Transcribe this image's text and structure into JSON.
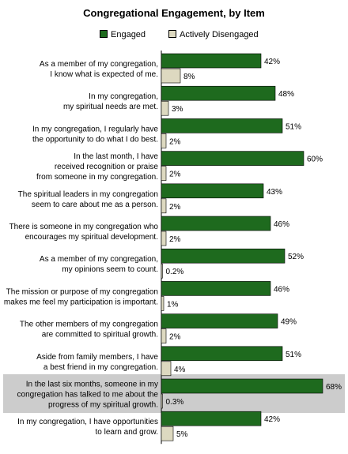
{
  "chart_data": {
    "type": "bar",
    "orientation": "horizontal",
    "title": "Congregational Engagement, by Item",
    "legend_position": "top",
    "xlim": [
      0,
      70
    ],
    "grid": false,
    "categories": [
      [
        "As a member of my congregation,",
        "I know what is expected of me."
      ],
      [
        "In my congregation,",
        "my spiritual needs are met."
      ],
      [
        "In my congregation, I regularly have",
        "the opportunity to do what I do best."
      ],
      [
        "In the last month, I have",
        "received recognition or praise",
        "from someone in my congregation."
      ],
      [
        "The spiritual leaders in my congregation",
        "seem to care about me as a person."
      ],
      [
        "There is someone in my congregation who",
        "encourages my spiritual development."
      ],
      [
        "As a member of my congregation,",
        "my opinions seem to count."
      ],
      [
        "The mission or purpose of my congregation",
        "makes me feel my participation is important."
      ],
      [
        "The other members of my congregation",
        "are committed to spiritual growth."
      ],
      [
        "Aside from family members, I have",
        "a best friend in my congregation."
      ],
      [
        "In the last six months, someone in my",
        "congregation has talked to me about the",
        "progress of my spiritual growth."
      ],
      [
        "In my congregation, I have opportunities",
        "to learn and grow."
      ]
    ],
    "highlighted_index": 10,
    "series": [
      {
        "name": "Engaged",
        "color": "#1e6a1e",
        "values": [
          42,
          48,
          51,
          60,
          43,
          46,
          52,
          46,
          49,
          51,
          68,
          42
        ],
        "labels": [
          "42%",
          "48%",
          "51%",
          "60%",
          "43%",
          "46%",
          "52%",
          "46%",
          "49%",
          "51%",
          "68%",
          "42%"
        ]
      },
      {
        "name": "Actively Disengaged",
        "color": "#ddd9c0",
        "values": [
          8,
          3,
          2,
          2,
          2,
          2,
          0.2,
          1,
          2,
          4,
          0.3,
          5
        ],
        "labels": [
          "8%",
          "3%",
          "2%",
          "2%",
          "2%",
          "2%",
          "0.2%",
          "1%",
          "2%",
          "4%",
          "0.3%",
          "5%"
        ]
      }
    ]
  }
}
